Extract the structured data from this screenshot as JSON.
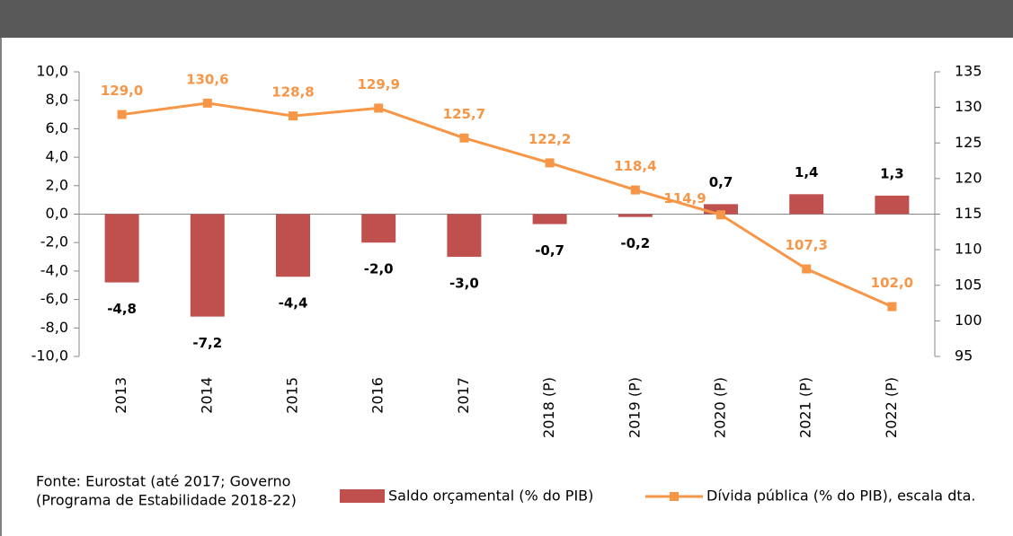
{
  "chart_data": {
    "type": "bar",
    "categories": [
      "2013",
      "2014",
      "2015",
      "2016",
      "2017",
      "2018 (P)",
      "2019 (P)",
      "2020 (P)",
      "2021 (P)",
      "2022 (P)"
    ],
    "series": [
      {
        "name": "Saldo orçamental (% do PIB)",
        "type": "bar",
        "color": "#c0504d",
        "values": [
          -4.8,
          -7.2,
          -4.4,
          -2.0,
          -3.0,
          -0.7,
          -0.2,
          0.7,
          1.4,
          1.3
        ],
        "value_labels": [
          "-4,8",
          "-7,2",
          "-4,4",
          "-2,0",
          "-3,0",
          "-0,7",
          "-0,2",
          "0,7",
          "1,4",
          "1,3"
        ]
      },
      {
        "name": "Dívida pública (% do PIB), escala dta.",
        "type": "line",
        "axis": "y2",
        "color": "#f79646",
        "values": [
          129.0,
          130.6,
          128.8,
          129.9,
          125.7,
          122.2,
          118.4,
          114.9,
          107.3,
          102.0
        ],
        "value_labels": [
          "129,0",
          "130,6",
          "128,8",
          "129,9",
          "125,7",
          "122,2",
          "118,4",
          "114,9",
          "107,3",
          "102,0"
        ]
      }
    ],
    "ylim": [
      -10,
      10
    ],
    "yticks": [
      {
        "value": -10,
        "label": "-10,0"
      },
      {
        "value": -8,
        "label": "-8,0"
      },
      {
        "value": -6,
        "label": "-6,0"
      },
      {
        "value": -4,
        "label": "-4,0"
      },
      {
        "value": -2,
        "label": "-2,0"
      },
      {
        "value": 0,
        "label": "0,0"
      },
      {
        "value": 2,
        "label": "2,0"
      },
      {
        "value": 4,
        "label": "4,0"
      },
      {
        "value": 6,
        "label": "6,0"
      },
      {
        "value": 8,
        "label": "8,0"
      },
      {
        "value": 10,
        "label": "10,0"
      }
    ],
    "y2lim": [
      95,
      135
    ],
    "y2ticks": [
      95,
      100,
      105,
      110,
      115,
      120,
      125,
      130,
      135
    ],
    "source": [
      "Fonte: Eurostat (até 2017; Governo",
      "(Programa de Estabilidade 2018-22)"
    ]
  }
}
